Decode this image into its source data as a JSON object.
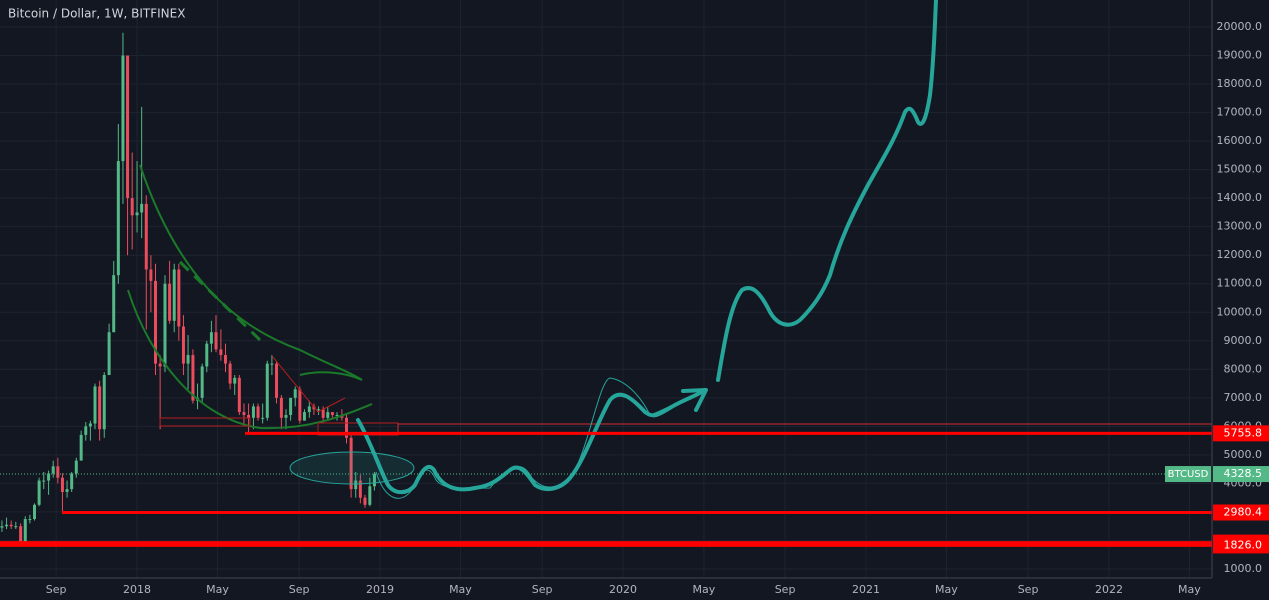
{
  "chart_data": {
    "type": "candlestick",
    "title": "Bitcoin / Dollar, 1W, BITFINEX",
    "symbol": "BTCUSD",
    "last_price": 4328.5,
    "up_color": "#53b987",
    "down_color": "#eb4d5c",
    "grid": true,
    "x": [
      2017.444,
      2017.463,
      2017.482,
      2017.501,
      2017.521,
      2017.54,
      2017.559,
      2017.578,
      2017.597,
      2017.616,
      2017.636,
      2017.655,
      2017.674,
      2017.693,
      2017.712,
      2017.731,
      2017.75,
      2017.77,
      2017.789,
      2017.808,
      2017.827,
      2017.846,
      2017.865,
      2017.885,
      2017.904,
      2017.923,
      2017.942,
      2017.961,
      2017.98,
      2018.0,
      2018.019,
      2018.038,
      2018.057,
      2018.076,
      2018.095,
      2018.115,
      2018.134,
      2018.153,
      2018.172,
      2018.191,
      2018.21,
      2018.23,
      2018.249,
      2018.268,
      2018.287,
      2018.306,
      2018.325,
      2018.345,
      2018.364,
      2018.383,
      2018.402,
      2018.421,
      2018.44,
      2018.459,
      2018.479,
      2018.498,
      2018.517,
      2018.536,
      2018.555,
      2018.574,
      2018.594,
      2018.613,
      2018.632,
      2018.651,
      2018.67,
      2018.689,
      2018.709,
      2018.728,
      2018.747,
      2018.766,
      2018.785,
      2018.804,
      2018.823,
      2018.843,
      2018.862,
      2018.881,
      2018.9,
      2018.919,
      2018.938,
      2018.958,
      2018.977
    ],
    "open": [
      2450,
      2500,
      2550,
      2500,
      2500,
      1950,
      2750,
      2750,
      3250,
      4100,
      4100,
      4350,
      4600,
      4200,
      3700,
      3800,
      4350,
      4800,
      5700,
      6000,
      6100,
      7400,
      5900,
      7800,
      9300,
      11300,
      15300,
      19000,
      14000,
      13400,
      13500,
      13800,
      11500,
      11100,
      8200,
      8100,
      11000,
      9700,
      11500,
      9500,
      8200,
      8500,
      6900,
      7000,
      8100,
      8900,
      9300,
      8700,
      8500,
      8200,
      7500,
      7700,
      6500,
      6400,
      6300,
      6700,
      6300,
      6300,
      8200,
      8200,
      7000,
      6300,
      6400,
      7000,
      7300,
      6200,
      6500,
      6700,
      6600,
      6600,
      6300,
      6500,
      6400,
      6400,
      6300,
      5600,
      3800,
      4100,
      3500,
      3250,
      3900
    ],
    "high": [
      2700,
      2800,
      2700,
      2650,
      2600,
      2850,
      2900,
      3300,
      4200,
      4400,
      4450,
      4800,
      4900,
      4350,
      4100,
      4400,
      4900,
      5850,
      6150,
      6200,
      7500,
      7600,
      7900,
      9600,
      11800,
      16600,
      19800,
      19000,
      15600,
      15300,
      17200,
      14100,
      12000,
      11700,
      8500,
      11300,
      11800,
      11700,
      11700,
      9900,
      9200,
      8700,
      7500,
      8200,
      9000,
      9700,
      9900,
      9400,
      8900,
      8300,
      7800,
      7800,
      6800,
      6800,
      6800,
      6800,
      6800,
      8300,
      8500,
      8300,
      7100,
      6600,
      7000,
      7400,
      7400,
      6600,
      6900,
      6800,
      6700,
      6700,
      6700,
      6500,
      6500,
      6600,
      6400,
      5700,
      4400,
      4300,
      3600,
      4200,
      4400
    ],
    "low": [
      2300,
      2400,
      2400,
      2400,
      1830,
      1950,
      2600,
      2700,
      3200,
      3800,
      3600,
      4200,
      4000,
      2980,
      3500,
      3700,
      4200,
      4800,
      5500,
      5500,
      5900,
      5500,
      5600,
      7800,
      9300,
      11000,
      13800,
      12000,
      12200,
      12800,
      12600,
      9400,
      10000,
      7800,
      5900,
      7900,
      9600,
      9300,
      9000,
      7800,
      7300,
      6800,
      6600,
      6800,
      7900,
      8600,
      8600,
      8300,
      7900,
      7300,
      7100,
      6400,
      6100,
      5800,
      5900,
      6200,
      6100,
      6200,
      7800,
      6800,
      5900,
      5900,
      6200,
      6700,
      6100,
      6200,
      6300,
      6400,
      6400,
      6100,
      6200,
      6300,
      6200,
      6200,
      5400,
      3500,
      3500,
      3300,
      3150,
      3200,
      3750
    ],
    "close": [
      2500,
      2550,
      2500,
      2500,
      1950,
      2750,
      2750,
      3250,
      4100,
      4100,
      4350,
      4600,
      4200,
      3700,
      3800,
      4350,
      4800,
      5700,
      6000,
      6100,
      7400,
      5900,
      7800,
      9300,
      11300,
      15300,
      19000,
      14000,
      13400,
      13500,
      13800,
      11500,
      11100,
      8200,
      8100,
      11000,
      9700,
      11500,
      9500,
      8200,
      8500,
      6900,
      7000,
      8100,
      8900,
      9300,
      8700,
      8500,
      8200,
      7500,
      7700,
      6500,
      6400,
      6300,
      6700,
      6300,
      6300,
      8200,
      8200,
      7000,
      6300,
      6400,
      7000,
      7300,
      6200,
      6500,
      6700,
      6600,
      6600,
      6300,
      6500,
      6400,
      6400,
      6300,
      5600,
      3800,
      4100,
      3500,
      3250,
      3900,
      4328.5
    ],
    "xlim": [
      2017.436,
      2022.424
    ],
    "ylim": [
      684,
      20947
    ],
    "xticks": [
      {
        "value": 2017.667,
        "label": "Sep"
      },
      {
        "value": 2018,
        "label": "2018"
      },
      {
        "value": 2018.331,
        "label": "May"
      },
      {
        "value": 2018.667,
        "label": "Sep"
      },
      {
        "value": 2019,
        "label": "2019"
      },
      {
        "value": 2019.331,
        "label": "May"
      },
      {
        "value": 2019.667,
        "label": "Sep"
      },
      {
        "value": 2020,
        "label": "2020"
      },
      {
        "value": 2020.333,
        "label": "May"
      },
      {
        "value": 2020.667,
        "label": "Sep"
      },
      {
        "value": 2021,
        "label": "2021"
      },
      {
        "value": 2021.331,
        "label": "May"
      },
      {
        "value": 2021.667,
        "label": "Sep"
      },
      {
        "value": 2022,
        "label": "2022"
      },
      {
        "value": 2022.331,
        "label": "May"
      }
    ],
    "yticks": [
      {
        "value": 1000,
        "label": "1000.0"
      },
      {
        "value": 2000,
        "label": "2000.0"
      },
      {
        "value": 3000,
        "label": "3000.0"
      },
      {
        "value": 4000,
        "label": "4000.0"
      },
      {
        "value": 5000,
        "label": "5000.0"
      },
      {
        "value": 6000,
        "label": "6000.0"
      },
      {
        "value": 7000,
        "label": "7000.0"
      },
      {
        "value": 8000,
        "label": "8000.0"
      },
      {
        "value": 9000,
        "label": "9000.0"
      },
      {
        "value": 10000,
        "label": "10000.0"
      },
      {
        "value": 11000,
        "label": "11000.0"
      },
      {
        "value": 12000,
        "label": "12000.0"
      },
      {
        "value": 13000,
        "label": "13000.0"
      },
      {
        "value": 14000,
        "label": "14000.0"
      },
      {
        "value": 15000,
        "label": "15000.0"
      },
      {
        "value": 16000,
        "label": "16000.0"
      },
      {
        "value": 17000,
        "label": "17000.0"
      },
      {
        "value": 18000,
        "label": "18000.0"
      },
      {
        "value": 19000,
        "label": "19000.0"
      },
      {
        "value": 20000,
        "label": "20000.0"
      }
    ],
    "price_levels": [
      5755.8,
      2980.4,
      1924.6,
      {
        "value": 1826,
        "label": "1826.0"
      }
    ]
  }
}
